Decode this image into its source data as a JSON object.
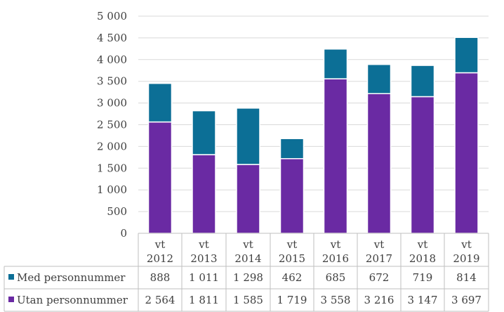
{
  "chart_data": {
    "type": "bar",
    "stacked": true,
    "categories": [
      "vt 2012",
      "vt 2013",
      "vt 2014",
      "vt 2015",
      "vt 2016",
      "vt 2017",
      "vt 2018",
      "vt 2019"
    ],
    "category_lines": [
      [
        "vt",
        "2012"
      ],
      [
        "vt",
        "2013"
      ],
      [
        "vt",
        "2014"
      ],
      [
        "vt",
        "2015"
      ],
      [
        "vt",
        "2016"
      ],
      [
        "vt",
        "2017"
      ],
      [
        "vt",
        "2018"
      ],
      [
        "vt",
        "2019"
      ]
    ],
    "series": [
      {
        "name": "Utan personnummer",
        "color": "#6a2aa3",
        "values": [
          2564,
          1811,
          1585,
          1719,
          3558,
          3216,
          3147,
          3697
        ],
        "labels": [
          "2 564",
          "1 811",
          "1 585",
          "1 719",
          "3 558",
          "3 216",
          "3 147",
          "3 697"
        ]
      },
      {
        "name": "Med personnummer",
        "color": "#0c6f96",
        "values": [
          888,
          1011,
          1298,
          462,
          685,
          672,
          719,
          814
        ],
        "labels": [
          "888",
          "1 011",
          "1 298",
          "462",
          "685",
          "672",
          "719",
          "814"
        ]
      }
    ],
    "ylim": [
      0,
      5000
    ],
    "yticks": [
      0,
      500,
      1000,
      1500,
      2000,
      2500,
      3000,
      3500,
      4000,
      4500,
      5000
    ],
    "ytick_labels": [
      "0",
      "500",
      "1 000",
      "1 500",
      "2 000",
      "2 500",
      "3 000",
      "3 500",
      "4 000",
      "4 500",
      "5 000"
    ],
    "grid": true,
    "legend": "data-table-below"
  }
}
